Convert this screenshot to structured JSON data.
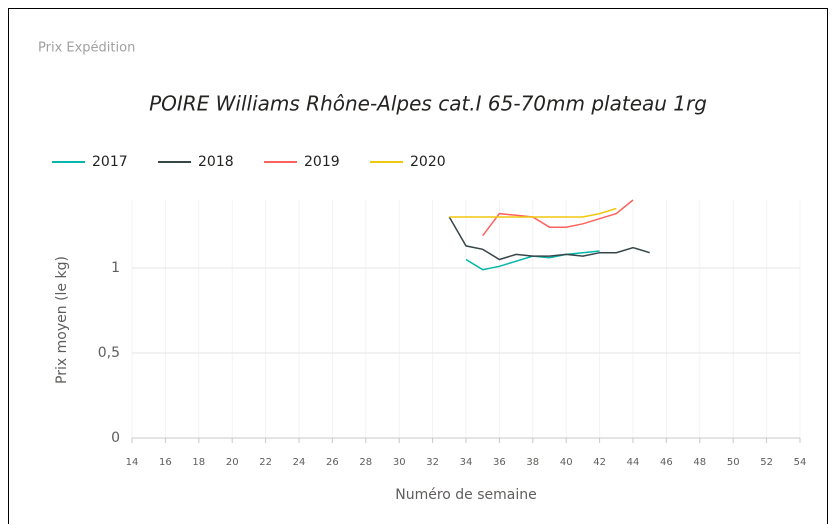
{
  "header": {
    "title": "Prix Expédition"
  },
  "chart_data": {
    "type": "line",
    "title": "POIRE Williams Rhône-Alpes cat.I 65-70mm plateau 1rg",
    "x_label": "Numéro de semaine",
    "y_label": "Prix moyen  (le kg)",
    "x": [
      33,
      34,
      35,
      36,
      37,
      38,
      39,
      40,
      41,
      42,
      43,
      44,
      45
    ],
    "series": [
      {
        "name": "2017",
        "color": "#01b8aa",
        "values": [
          null,
          1.05,
          0.99,
          1.01,
          1.04,
          1.07,
          1.06,
          1.08,
          1.09,
          1.1,
          null,
          null,
          null
        ]
      },
      {
        "name": "2018",
        "color": "#374649",
        "values": [
          1.3,
          1.13,
          1.11,
          1.05,
          1.08,
          1.07,
          1.07,
          1.08,
          1.07,
          1.09,
          1.09,
          1.12,
          1.09
        ]
      },
      {
        "name": "2019",
        "color": "#fd625e",
        "values": [
          null,
          null,
          1.19,
          1.32,
          1.31,
          1.3,
          1.24,
          1.24,
          1.26,
          1.29,
          1.32,
          1.4,
          null
        ]
      },
      {
        "name": "2020",
        "color": "#f2c80f",
        "values": [
          1.3,
          1.3,
          1.3,
          1.3,
          1.3,
          1.3,
          1.3,
          1.3,
          1.3,
          1.32,
          1.35,
          null,
          null
        ]
      }
    ],
    "xlim": [
      14,
      54
    ],
    "xticks": [
      14,
      16,
      18,
      20,
      22,
      24,
      26,
      28,
      30,
      32,
      34,
      36,
      38,
      40,
      42,
      44,
      46,
      48,
      50,
      52,
      54
    ],
    "ylim": [
      0,
      1.4
    ],
    "yticks": [
      0,
      {
        "value": 0.5,
        "label": "0,5"
      },
      1
    ],
    "grid": true,
    "legend": "top-left"
  }
}
